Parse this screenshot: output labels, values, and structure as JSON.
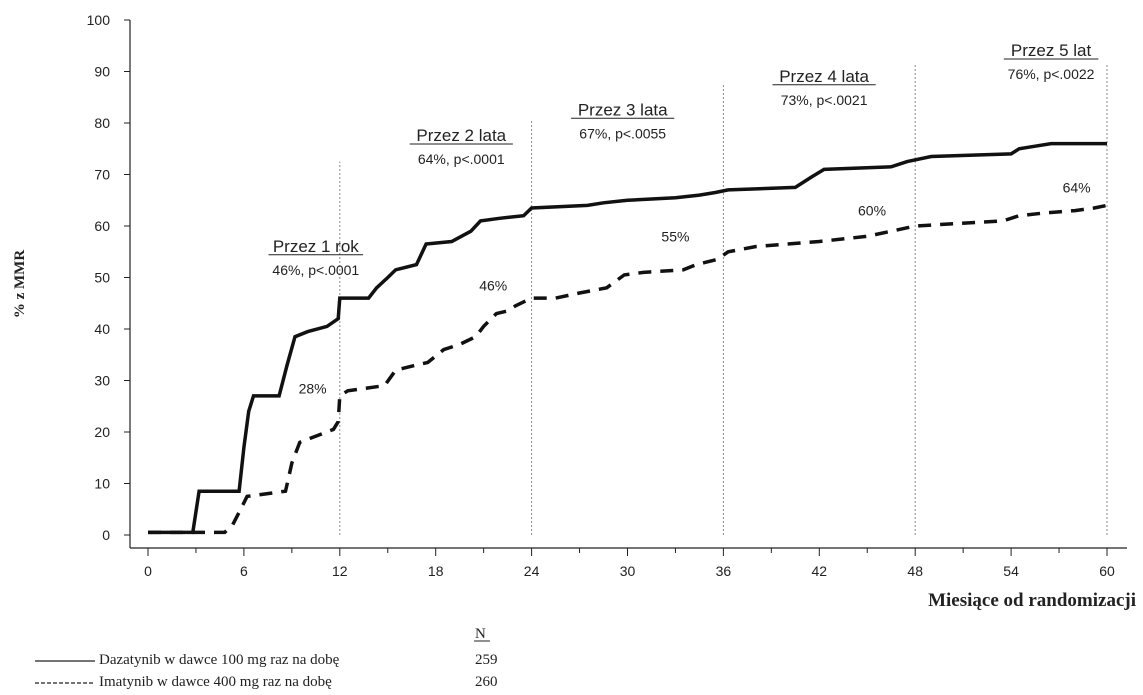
{
  "chart_data": {
    "type": "line",
    "title": "",
    "xlabel": "Miesiące od randomizacji",
    "ylabel": "% z MMR",
    "xlim": [
      0,
      60
    ],
    "ylim": [
      0,
      100
    ],
    "x_ticks": [
      0,
      6,
      12,
      18,
      24,
      30,
      36,
      42,
      48,
      54,
      60
    ],
    "y_ticks": [
      0,
      10,
      20,
      30,
      40,
      50,
      60,
      70,
      80,
      90,
      100
    ],
    "grid": false,
    "series": [
      {
        "name": "Dazatynib w dawce 100 mg raz na dobę",
        "line_style": "solid",
        "n": "259",
        "color": "#111111",
        "points": [
          [
            0,
            0.5
          ],
          [
            2.8,
            0.5
          ],
          [
            3.2,
            8.5
          ],
          [
            5.7,
            8.5
          ],
          [
            6,
            17
          ],
          [
            6.3,
            24
          ],
          [
            6.6,
            27
          ],
          [
            8.2,
            27
          ],
          [
            8.7,
            33
          ],
          [
            9.2,
            38.5
          ],
          [
            10,
            39.5
          ],
          [
            11.2,
            40.5
          ],
          [
            11.9,
            42
          ],
          [
            12,
            46
          ],
          [
            13.8,
            46
          ],
          [
            14.3,
            48
          ],
          [
            15,
            50
          ],
          [
            15.5,
            51.5
          ],
          [
            16.8,
            52.5
          ],
          [
            17.4,
            56.5
          ],
          [
            19,
            57
          ],
          [
            20.2,
            59
          ],
          [
            20.8,
            61
          ],
          [
            22,
            61.5
          ],
          [
            23.5,
            62
          ],
          [
            24,
            63.5
          ],
          [
            27.5,
            64
          ],
          [
            28.5,
            64.5
          ],
          [
            30,
            65
          ],
          [
            33,
            65.5
          ],
          [
            34.5,
            66
          ],
          [
            35.5,
            66.5
          ],
          [
            36.3,
            67
          ],
          [
            40.5,
            67.5
          ],
          [
            41.5,
            69.5
          ],
          [
            42.3,
            71
          ],
          [
            46.5,
            71.5
          ],
          [
            47.5,
            72.5
          ],
          [
            49,
            73.5
          ],
          [
            54,
            74
          ],
          [
            54.5,
            75
          ],
          [
            55.5,
            75.5
          ],
          [
            56.5,
            76
          ],
          [
            60,
            76
          ]
        ]
      },
      {
        "name": "Imatynib w dawce 400 mg raz na dobę",
        "line_style": "dashed",
        "n": "260",
        "color": "#111111",
        "points": [
          [
            0,
            0.5
          ],
          [
            4.8,
            0.5
          ],
          [
            5.3,
            2
          ],
          [
            5.8,
            5
          ],
          [
            6.2,
            7.5
          ],
          [
            8.6,
            8.5
          ],
          [
            9,
            14
          ],
          [
            9.5,
            18
          ],
          [
            11.6,
            20.5
          ],
          [
            11.9,
            22
          ],
          [
            12,
            27
          ],
          [
            12.5,
            28
          ],
          [
            14.8,
            29
          ],
          [
            15.5,
            32
          ],
          [
            16.8,
            33
          ],
          [
            17.5,
            33.5
          ],
          [
            18.5,
            36
          ],
          [
            19.5,
            37
          ],
          [
            20.5,
            38.5
          ],
          [
            21,
            40.5
          ],
          [
            21.8,
            43
          ],
          [
            22.5,
            43.5
          ],
          [
            23,
            44.5
          ],
          [
            24,
            46
          ],
          [
            25.5,
            46
          ],
          [
            27,
            47
          ],
          [
            28.7,
            48
          ],
          [
            29.8,
            50.5
          ],
          [
            31,
            51
          ],
          [
            33.5,
            51.5
          ],
          [
            34.3,
            52.5
          ],
          [
            35.6,
            53.5
          ],
          [
            36.3,
            55
          ],
          [
            38,
            56
          ],
          [
            42,
            57
          ],
          [
            45,
            58
          ],
          [
            46.5,
            59
          ],
          [
            48,
            60
          ],
          [
            53.5,
            61
          ],
          [
            54.5,
            62
          ],
          [
            56,
            62.5
          ],
          [
            58,
            63
          ],
          [
            59.2,
            63.5
          ],
          [
            60,
            64
          ]
        ]
      }
    ],
    "annotations": [
      {
        "title": "Przez 1 rok",
        "stat": "46%, p<.0001",
        "x": 10.5,
        "title_y": 55,
        "stat_y": 50.5
      },
      {
        "title": "Przez 2 lata",
        "stat": "64%, p<.0001",
        "x": 19.6,
        "title_y": 76.5,
        "stat_y": 72
      },
      {
        "title": "Przez 3 lata",
        "stat": "67%, p<.0055",
        "x": 29.7,
        "title_y": 81.5,
        "stat_y": 77
      },
      {
        "title": "Przez 4 lata",
        "stat": "73%, p<.0021",
        "x": 42.3,
        "title_y": 88,
        "stat_y": 83.5
      },
      {
        "title": "Przez 5 lat",
        "stat": "76%, p<.0022",
        "x": 56.5,
        "title_y": 93,
        "stat_y": 88.5
      }
    ],
    "point_labels": [
      {
        "text": "28%",
        "x": 10.3,
        "y": 27.5
      },
      {
        "text": "46%",
        "x": 21.6,
        "y": 47.5
      },
      {
        "text": "55%",
        "x": 33,
        "y": 57
      },
      {
        "text": "60%",
        "x": 45.3,
        "y": 62
      },
      {
        "text": "64%",
        "x": 58.1,
        "y": 66.5
      }
    ],
    "vlines_x": [
      12,
      24,
      36,
      48,
      60
    ],
    "vlines_top": [
      72.5,
      80.5,
      87.5,
      91.5,
      91.5
    ],
    "legend": {
      "n_header": "N",
      "placement": "bottom-left",
      "entries": [
        {
          "style": "solid",
          "label": "Dazatynib w dawce 100 mg raz na dobę",
          "n": "259"
        },
        {
          "style": "dashed",
          "label": "Imatynib w dawce 400 mg raz na dobę",
          "n": "260"
        }
      ]
    }
  }
}
